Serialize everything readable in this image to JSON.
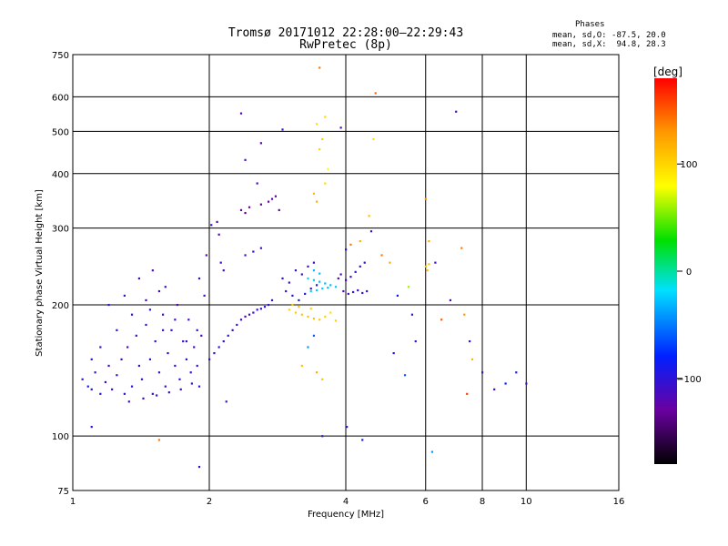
{
  "header": {
    "title_line1": "Tromsø 20171012 22:28:00–22:29:43",
    "title_line2": "RwPretec (8p)"
  },
  "phases": {
    "title": "Phases",
    "line_o": "mean, sd,O: -87.5, 20.0",
    "line_x": "mean, sd,X:  94.8, 28.3"
  },
  "colorbar": {
    "label": "[deg]",
    "ticks": [
      {
        "label": "100",
        "value": 100
      },
      {
        "label": "0",
        "value": 0
      },
      {
        "label": "−100",
        "value": -100
      }
    ],
    "range": [
      -180,
      180
    ]
  },
  "chart_data": {
    "type": "scatter",
    "xlabel": "Frequency [MHz]",
    "ylabel": "Stationary phase Virtual Height [km]",
    "xscale": "log",
    "yscale": "log",
    "xlim": [
      1,
      16
    ],
    "ylim": [
      75,
      750
    ],
    "x_ticks": [
      {
        "label": "1",
        "value": 1
      },
      {
        "label": "2",
        "value": 2
      },
      {
        "label": "4",
        "value": 4
      },
      {
        "label": "6",
        "value": 6
      },
      {
        "label": "8",
        "value": 8
      },
      {
        "label": "10",
        "value": 10
      },
      {
        "label": "16",
        "value": 16
      }
    ],
    "y_ticks": [
      {
        "label": "75",
        "value": 75
      },
      {
        "label": "100",
        "value": 100
      },
      {
        "label": "200",
        "value": 200
      },
      {
        "label": "300",
        "value": 300
      },
      {
        "label": "400",
        "value": 400
      },
      {
        "label": "500",
        "value": 500
      },
      {
        "label": "600",
        "value": 600
      },
      {
        "label": "750",
        "value": 750
      }
    ],
    "grid": true,
    "color_scale": "phase_deg",
    "series": [
      {
        "points": [
          [
            1.05,
            135,
            -105
          ],
          [
            1.08,
            130,
            -90
          ],
          [
            1.1,
            128,
            -100
          ],
          [
            1.12,
            140,
            -110
          ],
          [
            1.15,
            125,
            -105
          ],
          [
            1.18,
            133,
            -95
          ],
          [
            1.2,
            145,
            -110
          ],
          [
            1.22,
            128,
            -100
          ],
          [
            1.25,
            138,
            -108
          ],
          [
            1.28,
            150,
            -112
          ],
          [
            1.3,
            125,
            -102
          ],
          [
            1.32,
            160,
            -115
          ],
          [
            1.35,
            130,
            -100
          ],
          [
            1.38,
            170,
            -110
          ],
          [
            1.4,
            145,
            -105
          ],
          [
            1.42,
            135,
            -98
          ],
          [
            1.45,
            180,
            -112
          ],
          [
            1.48,
            150,
            -108
          ],
          [
            1.5,
            125,
            -100
          ],
          [
            1.52,
            165,
            -110
          ],
          [
            1.55,
            140,
            -104
          ],
          [
            1.58,
            190,
            -115
          ],
          [
            1.6,
            130,
            -100
          ],
          [
            1.62,
            155,
            -106
          ],
          [
            1.65,
            175,
            -112
          ],
          [
            1.68,
            145,
            -102
          ],
          [
            1.7,
            200,
            -116
          ],
          [
            1.72,
            135,
            -98
          ],
          [
            1.75,
            165,
            -108
          ],
          [
            1.78,
            150,
            -104
          ],
          [
            1.8,
            185,
            -112
          ],
          [
            1.82,
            140,
            -100
          ],
          [
            1.85,
            160,
            -106
          ],
          [
            1.88,
            145,
            -102
          ],
          [
            1.9,
            130,
            -96
          ],
          [
            1.92,
            170,
            -110
          ],
          [
            1.3,
            210,
            -110
          ],
          [
            1.4,
            230,
            -112
          ],
          [
            1.5,
            240,
            -115
          ],
          [
            1.6,
            220,
            -108
          ],
          [
            1.2,
            200,
            -105
          ],
          [
            1.35,
            190,
            -104
          ],
          [
            1.45,
            205,
            -110
          ],
          [
            1.55,
            215,
            -112
          ],
          [
            1.25,
            175,
            -106
          ],
          [
            1.15,
            160,
            -104
          ],
          [
            1.1,
            150,
            -102
          ],
          [
            1.33,
            120,
            -100
          ],
          [
            1.43,
            122,
            -101
          ],
          [
            1.53,
            124,
            -103
          ],
          [
            1.63,
            126,
            -104
          ],
          [
            1.73,
            128,
            -105
          ],
          [
            1.83,
            132,
            -106
          ],
          [
            1.48,
            195,
            -108
          ],
          [
            1.58,
            175,
            -110
          ],
          [
            1.68,
            185,
            -109
          ],
          [
            1.78,
            165,
            -107
          ],
          [
            1.88,
            175,
            -108
          ],
          [
            1.95,
            210,
            -112
          ],
          [
            1.97,
            260,
            -115
          ],
          [
            1.9,
            230,
            -110
          ],
          [
            2.0,
            150,
            -100
          ],
          [
            2.05,
            155,
            -102
          ],
          [
            2.1,
            160,
            -104
          ],
          [
            2.15,
            165,
            -105
          ],
          [
            2.2,
            170,
            -106
          ],
          [
            2.25,
            175,
            -107
          ],
          [
            2.3,
            180,
            -108
          ],
          [
            2.35,
            185,
            -109
          ],
          [
            2.4,
            188,
            -110
          ],
          [
            2.45,
            190,
            -108
          ],
          [
            2.5,
            192,
            -106
          ],
          [
            2.55,
            195,
            -105
          ],
          [
            2.6,
            196,
            -104
          ],
          [
            2.65,
            198,
            -103
          ],
          [
            2.7,
            200,
            -102
          ],
          [
            2.75,
            205,
            -101
          ],
          [
            2.08,
            310,
            -115
          ],
          [
            2.1,
            290,
            -113
          ],
          [
            2.12,
            250,
            -112
          ],
          [
            2.15,
            240,
            -110
          ],
          [
            2.4,
            260,
            -108
          ],
          [
            2.5,
            265,
            -110
          ],
          [
            2.6,
            270,
            -112
          ],
          [
            2.35,
            330,
            -130
          ],
          [
            2.4,
            325,
            -132
          ],
          [
            2.45,
            335,
            -128
          ],
          [
            2.6,
            340,
            -135
          ],
          [
            2.7,
            345,
            -130
          ],
          [
            2.75,
            350,
            -125
          ],
          [
            2.8,
            355,
            -128
          ],
          [
            2.85,
            330,
            -132
          ],
          [
            2.55,
            380,
            -120
          ],
          [
            2.4,
            430,
            -110
          ],
          [
            2.6,
            470,
            -118
          ],
          [
            2.35,
            550,
            -115
          ],
          [
            2.9,
            230,
            -100
          ],
          [
            3.0,
            225,
            -102
          ],
          [
            3.1,
            240,
            -104
          ],
          [
            3.2,
            235,
            -106
          ],
          [
            3.3,
            245,
            -108
          ],
          [
            3.4,
            250,
            -105
          ],
          [
            2.95,
            215,
            -98
          ],
          [
            3.05,
            210,
            -96
          ],
          [
            3.15,
            205,
            -94
          ],
          [
            3.25,
            212,
            -96
          ],
          [
            3.35,
            218,
            -98
          ],
          [
            3.45,
            222,
            -100
          ],
          [
            3.3,
            230,
            -20
          ],
          [
            3.4,
            228,
            -25
          ],
          [
            3.5,
            226,
            -30
          ],
          [
            3.6,
            224,
            -28
          ],
          [
            3.7,
            222,
            -30
          ],
          [
            3.8,
            220,
            -25
          ],
          [
            3.35,
            215,
            -22
          ],
          [
            3.45,
            216,
            -24
          ],
          [
            3.55,
            218,
            -26
          ],
          [
            3.65,
            219,
            -28
          ],
          [
            3.4,
            240,
            -30
          ],
          [
            3.5,
            236,
            -28
          ],
          [
            3.0,
            195,
            100
          ],
          [
            3.1,
            192,
            105
          ],
          [
            3.2,
            190,
            110
          ],
          [
            3.3,
            188,
            108
          ],
          [
            3.4,
            186,
            112
          ],
          [
            3.5,
            185,
            105
          ],
          [
            3.6,
            188,
            100
          ],
          [
            3.7,
            192,
            95
          ],
          [
            3.8,
            184,
            102
          ],
          [
            3.05,
            200,
            106
          ],
          [
            3.15,
            198,
            110
          ],
          [
            3.35,
            196,
            104
          ],
          [
            3.4,
            170,
            -60
          ],
          [
            3.3,
            160,
            -40
          ],
          [
            3.2,
            145,
            110
          ],
          [
            3.45,
            140,
            120
          ],
          [
            3.55,
            135,
            108
          ],
          [
            3.5,
            455,
            100
          ],
          [
            3.55,
            480,
            105
          ],
          [
            3.45,
            520,
            95
          ],
          [
            3.6,
            540,
            98
          ],
          [
            3.5,
            700,
            140
          ],
          [
            3.4,
            360,
            112
          ],
          [
            3.45,
            345,
            118
          ],
          [
            3.6,
            380,
            96
          ],
          [
            3.65,
            410,
            80
          ],
          [
            3.85,
            230,
            -110
          ],
          [
            3.9,
            235,
            -112
          ],
          [
            4.0,
            228,
            -108
          ],
          [
            4.1,
            232,
            -110
          ],
          [
            4.2,
            238,
            -106
          ],
          [
            4.3,
            245,
            -104
          ],
          [
            4.4,
            250,
            -108
          ],
          [
            3.95,
            215,
            -112
          ],
          [
            4.05,
            212,
            -110
          ],
          [
            4.15,
            214,
            -108
          ],
          [
            4.25,
            216,
            -106
          ],
          [
            4.35,
            213,
            -104
          ],
          [
            4.45,
            215,
            -102
          ],
          [
            4.0,
            268,
            -105
          ],
          [
            4.1,
            275,
            140
          ],
          [
            4.3,
            280,
            120
          ],
          [
            4.55,
            295,
            -110
          ],
          [
            4.5,
            320,
            110
          ],
          [
            4.6,
            480,
            95
          ],
          [
            4.65,
            612,
            145
          ],
          [
            4.02,
            105,
            -105
          ],
          [
            4.35,
            98,
            -90
          ],
          [
            4.8,
            260,
            140
          ],
          [
            5.0,
            250,
            120
          ],
          [
            5.2,
            210,
            -80
          ],
          [
            5.5,
            220,
            60
          ],
          [
            5.6,
            190,
            -100
          ],
          [
            5.7,
            165,
            -105
          ],
          [
            6.0,
            245,
            110
          ],
          [
            6.05,
            240,
            112
          ],
          [
            6.1,
            248,
            108
          ],
          [
            6.0,
            350,
            130
          ],
          [
            6.1,
            280,
            120
          ],
          [
            6.3,
            250,
            -110
          ],
          [
            6.5,
            185,
            150
          ],
          [
            6.8,
            205,
            -120
          ],
          [
            7.2,
            270,
            140
          ],
          [
            7.3,
            190,
            130
          ],
          [
            7.5,
            165,
            -100
          ],
          [
            7.6,
            150,
            115
          ],
          [
            8.0,
            140,
            -110
          ],
          [
            8.5,
            128,
            -100
          ],
          [
            9.0,
            132,
            -80
          ],
          [
            9.5,
            140,
            -90
          ],
          [
            10.0,
            132,
            -95
          ],
          [
            7.4,
            125,
            160
          ],
          [
            7.0,
            555,
            -120
          ],
          [
            5.1,
            155,
            -95
          ],
          [
            3.55,
            100,
            -110
          ],
          [
            1.1,
            105,
            -100
          ],
          [
            1.55,
            98,
            140
          ],
          [
            1.9,
            85,
            -110
          ],
          [
            5.4,
            138,
            -60
          ],
          [
            2.02,
            305,
            -100
          ],
          [
            2.18,
            120,
            -110
          ],
          [
            2.9,
            505,
            -110
          ],
          [
            3.9,
            510,
            -115
          ],
          [
            6.2,
            92,
            -40
          ]
        ]
      }
    ]
  }
}
